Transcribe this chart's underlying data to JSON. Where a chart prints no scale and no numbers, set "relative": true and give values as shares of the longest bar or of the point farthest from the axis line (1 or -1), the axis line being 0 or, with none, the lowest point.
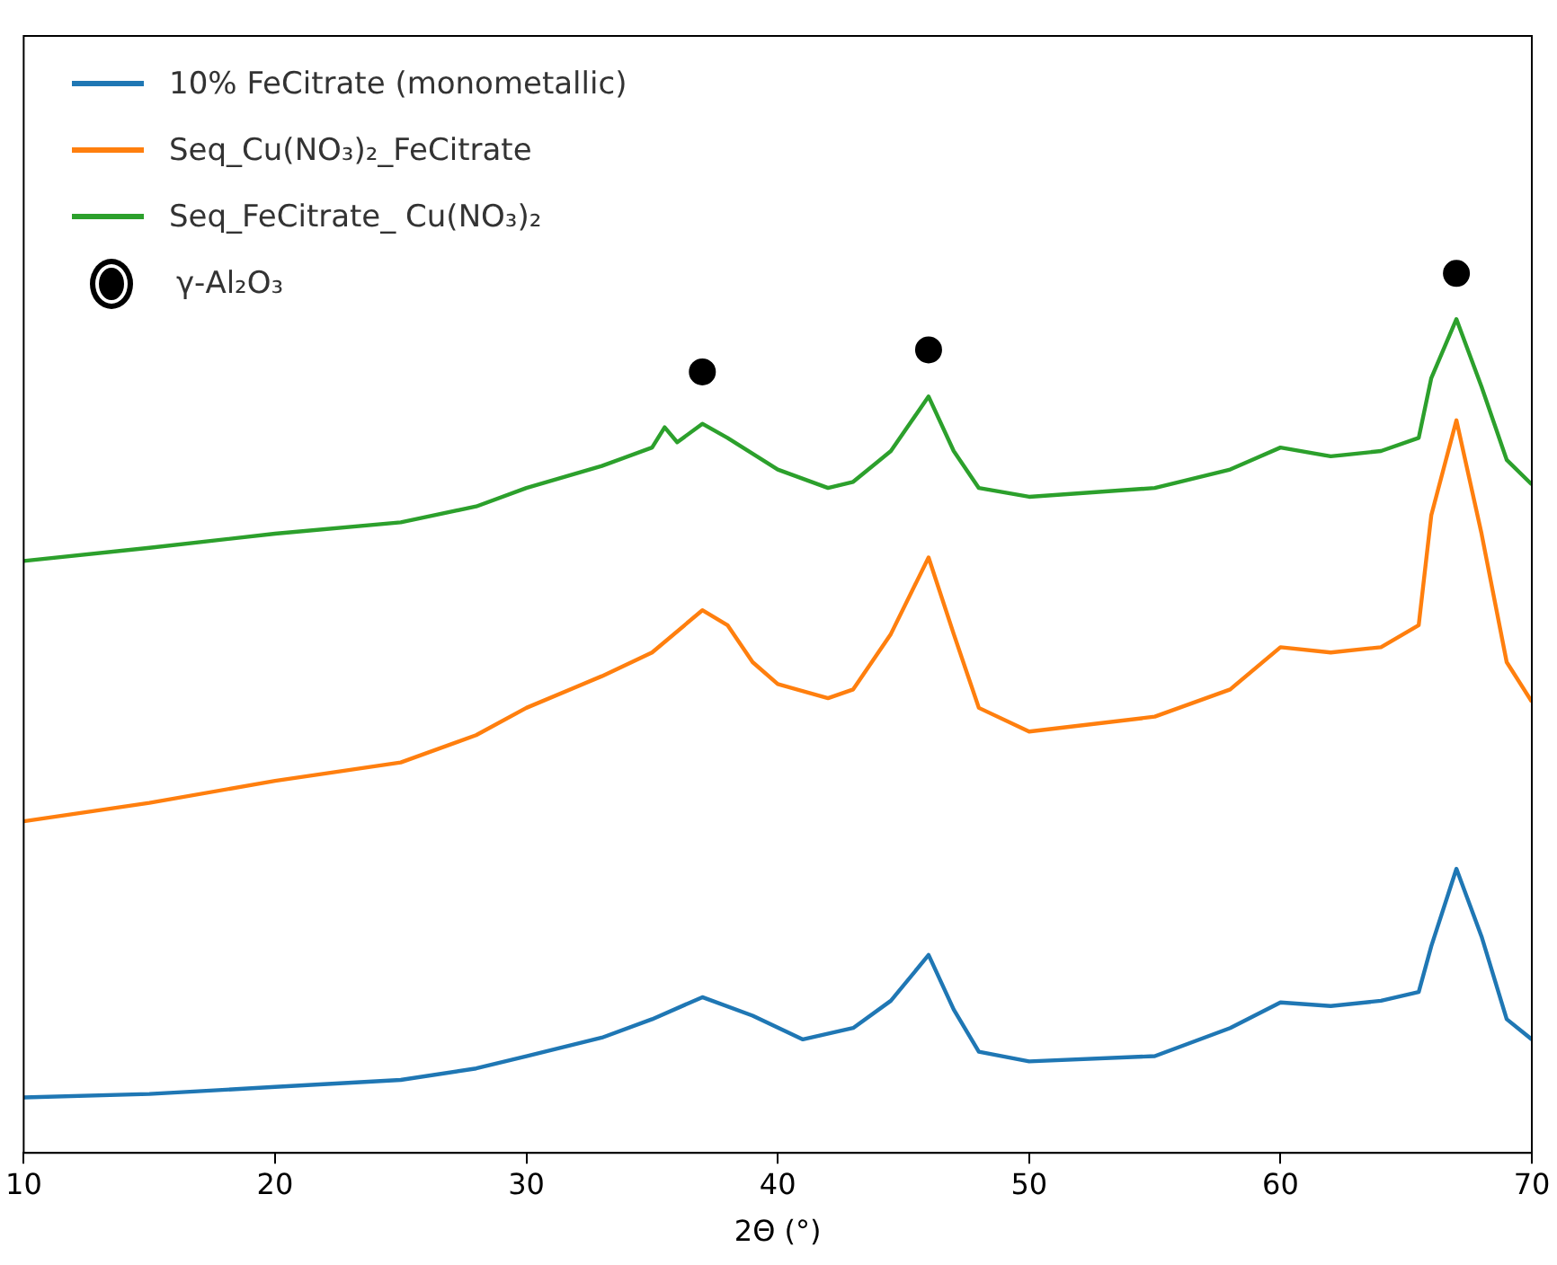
{
  "chart_data": {
    "type": "line",
    "relative": true,
    "xlabel": "2Θ (°)",
    "xlim": [
      10,
      70
    ],
    "xticks": [
      10,
      20,
      30,
      40,
      50,
      60,
      70
    ],
    "grid": false,
    "legend": "top left",
    "tick_labels": "x",
    "x": [
      10,
      15,
      20,
      25,
      28,
      30,
      33,
      35,
      37,
      39,
      41,
      43,
      44.5,
      46,
      47,
      48,
      50,
      55,
      58,
      60,
      62,
      64,
      65.5,
      66,
      67,
      68,
      69,
      70
    ],
    "series": [
      {
        "name": "10% FeCitrate (monometallic)",
        "marker": "none",
        "color": "#1f77b4",
        "values": [
          0.063,
          0.067,
          0.075,
          0.083,
          0.096,
          0.11,
          0.131,
          0.152,
          0.177,
          0.156,
          0.129,
          0.142,
          0.173,
          0.225,
          0.163,
          0.115,
          0.104,
          0.11,
          0.142,
          0.171,
          0.167,
          0.173,
          0.183,
          0.235,
          0.323,
          0.246,
          0.152,
          0.129
        ]
      },
      {
        "name": "Seq_Cu(NO₃)₂_FeCitrate",
        "marker": "none",
        "color": "#ff7f0e",
        "x": [
          10,
          15,
          20,
          25,
          28,
          30,
          33,
          35,
          37,
          38,
          39,
          40,
          42,
          43,
          44.5,
          46,
          47,
          48,
          50,
          55,
          58,
          60,
          62,
          64,
          65.5,
          66,
          67,
          68,
          69,
          70
        ],
        "values": [
          0.377,
          0.398,
          0.423,
          0.444,
          0.475,
          0.506,
          0.542,
          0.569,
          0.617,
          0.6,
          0.558,
          0.533,
          0.517,
          0.527,
          0.59,
          0.677,
          0.59,
          0.506,
          0.479,
          0.496,
          0.527,
          0.575,
          0.569,
          0.575,
          0.6,
          0.725,
          0.833,
          0.704,
          0.558,
          0.513
        ]
      },
      {
        "name": "Seq_FeCitrate_ Cu(NO₃)₂",
        "marker": "none",
        "color": "#2ca02c",
        "x": [
          10,
          15,
          20,
          25,
          28,
          30,
          33,
          35,
          35.5,
          36,
          37,
          38,
          40,
          42,
          43,
          44.5,
          46,
          47,
          48,
          50,
          55,
          58,
          60,
          62,
          64,
          65.5,
          66,
          67,
          68,
          69,
          70
        ],
        "values": [
          0.673,
          0.688,
          0.704,
          0.717,
          0.735,
          0.756,
          0.781,
          0.802,
          0.825,
          0.808,
          0.829,
          0.813,
          0.777,
          0.756,
          0.763,
          0.798,
          0.86,
          0.798,
          0.756,
          0.746,
          0.756,
          0.777,
          0.802,
          0.792,
          0.798,
          0.813,
          0.881,
          0.948,
          0.871,
          0.788,
          0.76
        ]
      },
      {
        "name": "γ-Al₂O₃",
        "type": "scatter",
        "marker": "circle",
        "color": "#000000",
        "x": [
          37,
          46,
          67
        ],
        "values": [
          0.888,
          0.913,
          1
        ]
      }
    ]
  }
}
